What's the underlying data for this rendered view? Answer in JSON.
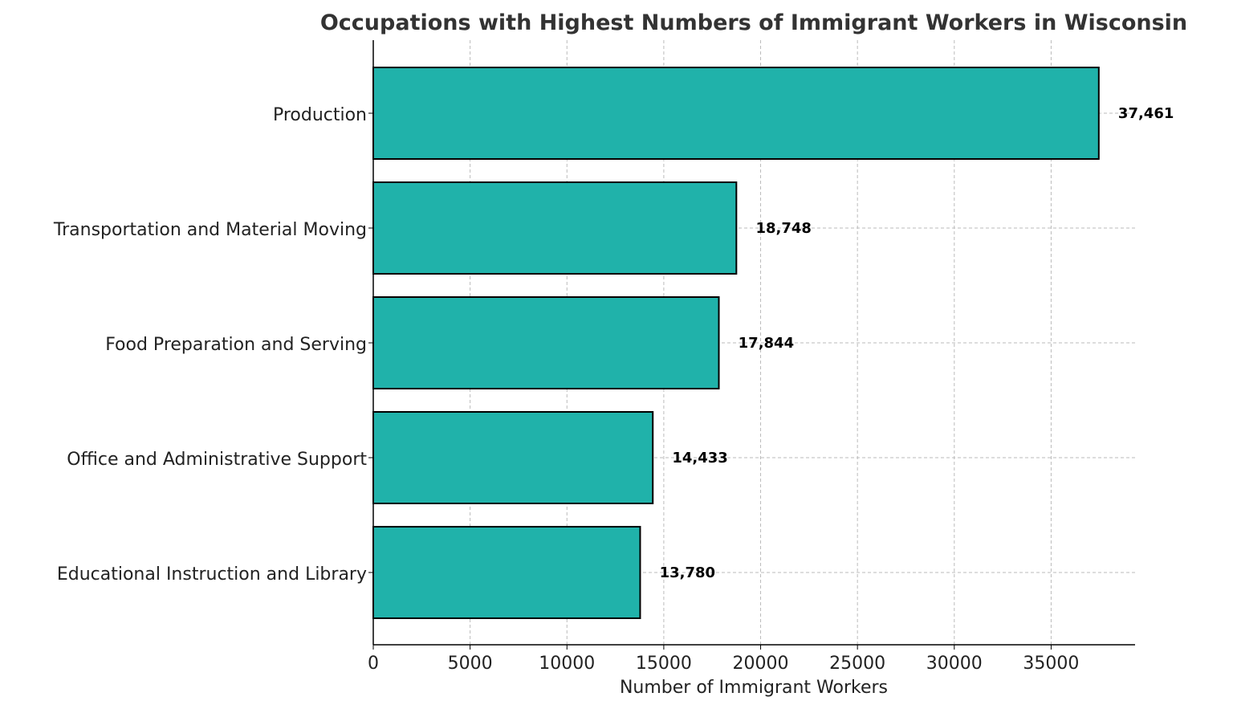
{
  "chart_data": {
    "type": "bar",
    "orientation": "horizontal",
    "title": "Occupations with Highest Numbers of Immigrant Workers in Wisconsin",
    "xlabel": "Number of Immigrant Workers",
    "ylabel": "",
    "categories": [
      "Production",
      "Transportation and Material Moving",
      "Food Preparation and Serving",
      "Office and Administrative Support",
      "Educational Instruction and Library"
    ],
    "values": [
      37461,
      18748,
      17844,
      14433,
      13780
    ],
    "data_labels": [
      "37,461",
      "18,748",
      "17,844",
      "14,433",
      "13,780"
    ],
    "xticks": [
      0,
      5000,
      10000,
      15000,
      20000,
      25000,
      30000,
      35000
    ],
    "xlim": [
      0,
      39334
    ],
    "grid": true,
    "bar_color": "#20b2aa",
    "edge_color": "#000000"
  }
}
